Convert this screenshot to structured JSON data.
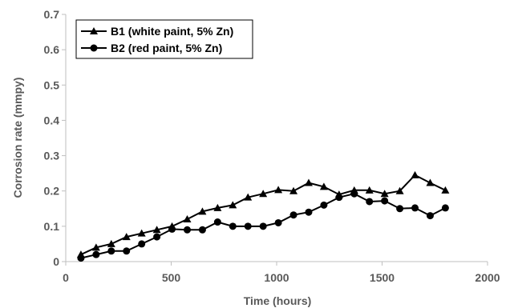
{
  "chart_data": {
    "type": "line",
    "title": "",
    "xlabel": "Time (hours)",
    "ylabel": "Corrosion rate (mmpy)",
    "xlim": [
      0,
      2000
    ],
    "ylim": [
      0,
      0.7
    ],
    "x_ticks": [
      "0",
      "500",
      "1000",
      "1500",
      "2000"
    ],
    "y_ticks": [
      "0",
      "0.1",
      "0.2",
      "0.3",
      "0.4",
      "0.5",
      "0.6",
      "0.7"
    ],
    "grid": false,
    "legend_position": "top-left",
    "series": [
      {
        "name": "B1 (white paint, 5% Zn)",
        "marker": "triangle",
        "color": "#000000",
        "points": [
          [
            72,
            0.02
          ],
          [
            144,
            0.04
          ],
          [
            216,
            0.05
          ],
          [
            288,
            0.07
          ],
          [
            360,
            0.08
          ],
          [
            432,
            0.09
          ],
          [
            504,
            0.1
          ],
          [
            576,
            0.12
          ],
          [
            648,
            0.142
          ],
          [
            720,
            0.152
          ],
          [
            792,
            0.16
          ],
          [
            864,
            0.182
          ],
          [
            936,
            0.192
          ],
          [
            1008,
            0.203
          ],
          [
            1080,
            0.2
          ],
          [
            1152,
            0.223
          ],
          [
            1224,
            0.212
          ],
          [
            1296,
            0.19
          ],
          [
            1368,
            0.202
          ],
          [
            1440,
            0.202
          ],
          [
            1512,
            0.192
          ],
          [
            1584,
            0.2
          ],
          [
            1656,
            0.245
          ],
          [
            1728,
            0.223
          ],
          [
            1800,
            0.202
          ]
        ]
      },
      {
        "name": "B2 (red paint, 5% Zn)",
        "marker": "circle",
        "color": "#000000",
        "points": [
          [
            72,
            0.01
          ],
          [
            144,
            0.02
          ],
          [
            216,
            0.03
          ],
          [
            288,
            0.03
          ],
          [
            360,
            0.05
          ],
          [
            432,
            0.07
          ],
          [
            504,
            0.092
          ],
          [
            576,
            0.09
          ],
          [
            648,
            0.09
          ],
          [
            720,
            0.112
          ],
          [
            792,
            0.1
          ],
          [
            864,
            0.1
          ],
          [
            936,
            0.1
          ],
          [
            1008,
            0.11
          ],
          [
            1080,
            0.132
          ],
          [
            1152,
            0.14
          ],
          [
            1224,
            0.16
          ],
          [
            1296,
            0.182
          ],
          [
            1368,
            0.192
          ],
          [
            1440,
            0.17
          ],
          [
            1512,
            0.172
          ],
          [
            1584,
            0.15
          ],
          [
            1656,
            0.152
          ],
          [
            1728,
            0.13
          ],
          [
            1800,
            0.152
          ]
        ]
      }
    ]
  }
}
